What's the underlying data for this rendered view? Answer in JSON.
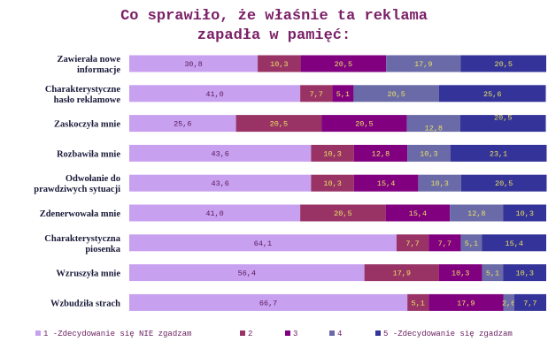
{
  "chart_data": {
    "type": "bar",
    "orientation": "horizontal",
    "stacked": "100%",
    "title_lines": [
      "Co sprawiło, że właśnie ta reklama",
      "zapadła w pamięć:"
    ],
    "categories": [
      "Zawierała nowe informacje",
      "Charakterystyczne hasło reklamowe",
      "Zaskoczyła mnie",
      "Rozbawiła mnie",
      "Odwołanie do prawdziwych sytuacji",
      "Zdenerwowała mnie",
      "Charakterystyczna piosenka",
      "Wzruszyła mnie",
      "Wzbudziła strach"
    ],
    "category_lines": [
      [
        "Zawierała nowe",
        "informacje"
      ],
      [
        "Charakterystyczne",
        "hasło reklamowe"
      ],
      [
        "Zaskoczyła mnie"
      ],
      [
        "Rozbawiła mnie"
      ],
      [
        "Odwołanie do",
        "prawdziwych sytuacji"
      ],
      [
        "Zdenerwowała mnie"
      ],
      [
        "Charakterystyczna",
        "piosenka"
      ],
      [
        "Wzruszyła mnie"
      ],
      [
        "Wzbudziła strach"
      ]
    ],
    "series": [
      {
        "name": "1 -Zdecydowanie się NIE zgadzam",
        "color": "#c8a0f0",
        "label_color": "#5a1a5a",
        "values": [
          30.8,
          41.0,
          25.6,
          43.6,
          43.6,
          41.0,
          64.1,
          56.4,
          66.7
        ],
        "labels": [
          "30,8",
          "41,0",
          "25,6",
          "43,6",
          "43,6",
          "41,0",
          "64,1",
          "56,4",
          "66,7"
        ]
      },
      {
        "name": "2",
        "color": "#993366",
        "label_color": "#e8e060",
        "values": [
          10.3,
          7.7,
          20.5,
          10.3,
          10.3,
          20.5,
          7.7,
          17.9,
          5.1
        ],
        "labels": [
          "10,3",
          "7,7",
          "20,5",
          "10,3",
          "10,3",
          "20,5",
          "7,7",
          "17,9",
          "5,1"
        ]
      },
      {
        "name": "3",
        "color": "#800080",
        "label_color": "#e8e060",
        "values": [
          20.5,
          5.1,
          20.5,
          12.8,
          15.4,
          15.4,
          7.7,
          10.3,
          17.9
        ],
        "labels": [
          "20,5",
          "5,1",
          "20,5",
          "12,8",
          "15,4",
          "15,4",
          "7,7",
          "10,3",
          "17,9"
        ]
      },
      {
        "name": "4",
        "color": "#6a6aa8",
        "label_color": "#e8e060",
        "values": [
          17.9,
          20.5,
          12.8,
          10.3,
          10.3,
          12.8,
          5.1,
          5.1,
          2.6
        ],
        "labels": [
          "17,9",
          "20,5",
          "12,8",
          "10,3",
          "10,3",
          "12,8",
          "5,1",
          "5,1",
          "2,6"
        ]
      },
      {
        "name": "5 -Zdecydowanie się zgadzam",
        "color": "#333399",
        "label_color": "#e8e060",
        "values": [
          20.5,
          25.6,
          20.5,
          23.1,
          20.5,
          10.3,
          15.4,
          10.3,
          7.7
        ],
        "labels": [
          "20,5",
          "25,6",
          "20,5",
          "23,1",
          "20,5",
          "10,3",
          "15,4",
          "10,3",
          "7,7"
        ]
      }
    ],
    "xlim": [
      0,
      100
    ],
    "legend_position": "bottom"
  }
}
